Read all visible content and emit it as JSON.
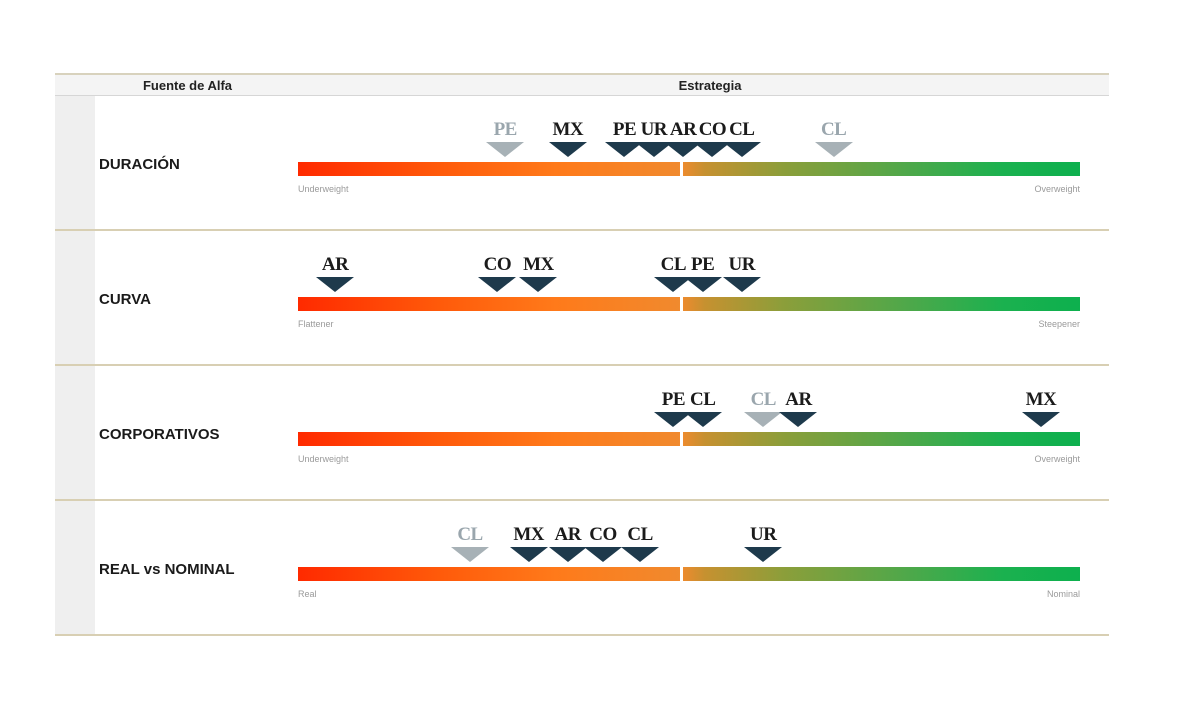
{
  "header": {
    "source": "Fuente de Alfa",
    "strategy": "Estrategia"
  },
  "colors": {
    "marker": "#1e3a4c",
    "marker_prev": "#a7b1b6",
    "scale_low": "#ff2a00",
    "scale_high": "#0db04e"
  },
  "chart_data": {
    "type": "scale-markers",
    "scale": [
      -1,
      1
    ],
    "rows": [
      {
        "label": "DURACIÓN",
        "left": "Underweight",
        "right": "Overweight",
        "markers": [
          {
            "text": "PE",
            "value": -0.47,
            "grey": true
          },
          {
            "text": "MX",
            "value": -0.31,
            "grey": false
          },
          {
            "text": "PE",
            "value": -0.165,
            "grey": false
          },
          {
            "text": "UR",
            "value": -0.09,
            "grey": false
          },
          {
            "text": "AR",
            "value": -0.015,
            "grey": false
          },
          {
            "text": "CO",
            "value": 0.06,
            "grey": false
          },
          {
            "text": "CL",
            "value": 0.135,
            "grey": false
          },
          {
            "text": "CL",
            "value": 0.37,
            "grey": true
          }
        ]
      },
      {
        "label": "CURVA",
        "left": "Flattener",
        "right": "Steepener",
        "markers": [
          {
            "text": "AR",
            "value": -0.905,
            "grey": false
          },
          {
            "text": "CO",
            "value": -0.49,
            "grey": false
          },
          {
            "text": "MX",
            "value": -0.385,
            "grey": false
          },
          {
            "text": "CL",
            "value": -0.04,
            "grey": false
          },
          {
            "text": "PE",
            "value": 0.035,
            "grey": false
          },
          {
            "text": "UR",
            "value": 0.135,
            "grey": false
          }
        ]
      },
      {
        "label": "CORPORATIVOS",
        "left": "Underweight",
        "right": "Overweight",
        "markers": [
          {
            "text": "PE",
            "value": -0.04,
            "grey": false
          },
          {
            "text": "CL",
            "value": 0.035,
            "grey": false
          },
          {
            "text": "CL",
            "value": 0.19,
            "grey": true
          },
          {
            "text": "AR",
            "value": 0.28,
            "grey": false
          },
          {
            "text": "MX",
            "value": 0.9,
            "grey": false
          }
        ]
      },
      {
        "label": "REAL vs NOMINAL",
        "left": "Real",
        "right": "Nominal",
        "markers": [
          {
            "text": "CL",
            "value": -0.56,
            "grey": true
          },
          {
            "text": "MX",
            "value": -0.41,
            "grey": false
          },
          {
            "text": "AR",
            "value": -0.31,
            "grey": false
          },
          {
            "text": "CO",
            "value": -0.22,
            "grey": false
          },
          {
            "text": "CL",
            "value": -0.125,
            "grey": false
          },
          {
            "text": "UR",
            "value": 0.19,
            "grey": false
          }
        ]
      }
    ]
  }
}
